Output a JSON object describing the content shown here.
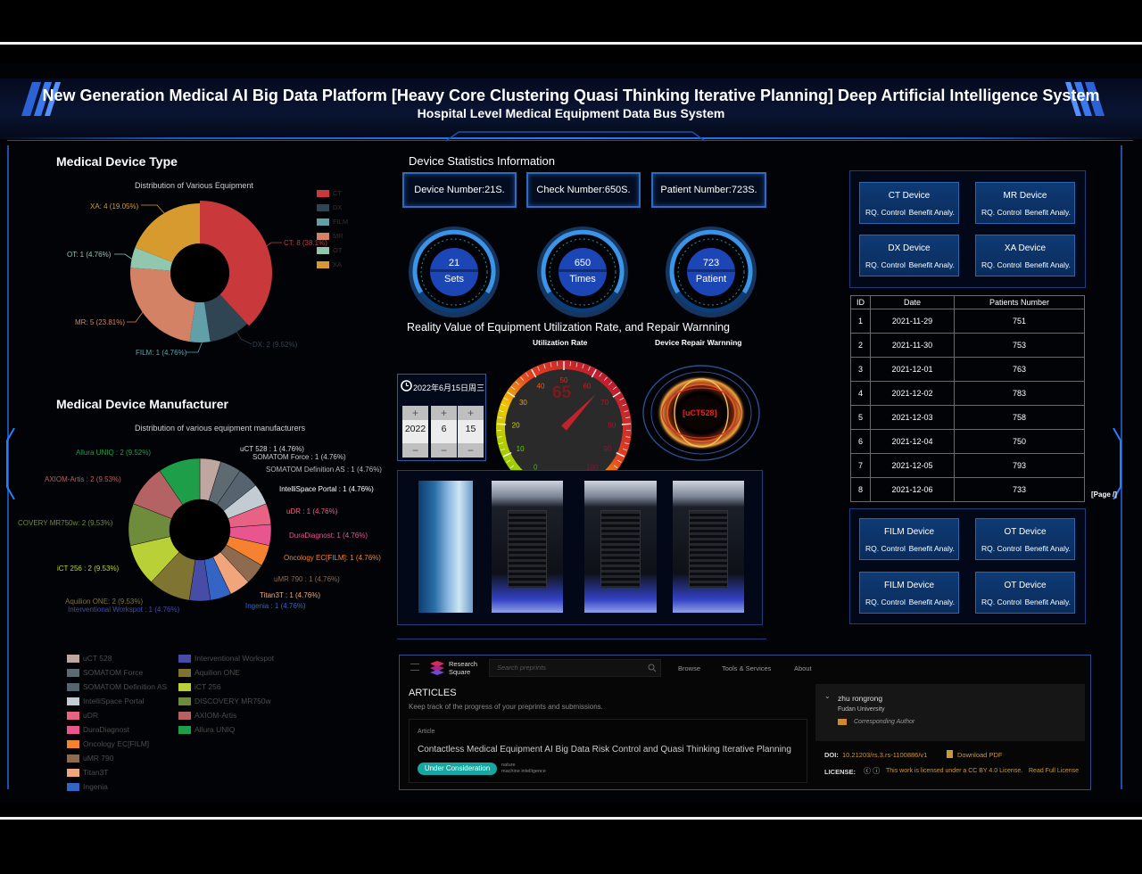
{
  "header": {
    "title": "New Generation Medical AI Big Data Platform [Heavy Core Clustering Quasi Thinking Iterative Planning] Deep Artificial Intelligence System",
    "subtitle": "Hospital Level Medical Equipment Data Bus System"
  },
  "device_type": {
    "heading": "Medical Device Type",
    "caption": "Distribution of Various Equipment",
    "labels": {
      "ct": "CT: 8 (38.1%)",
      "dx": "DX: 2 (9.52%)",
      "film": "FILM: 1 (4.76%)",
      "mr": "MR: 5 (23.81%)",
      "ot": "OT: 1 (4.76%)",
      "xa": "XA: 4 (19.05%)"
    },
    "legend": [
      "CT",
      "DX",
      "FILM",
      "MR",
      "OT",
      "XA"
    ]
  },
  "manufacturer": {
    "heading": "Medical Device Manufacturer",
    "caption": "Distribution of various equipment manufacturers",
    "labels": {
      "uct528": "uCT 528 : 1 (4.76%)",
      "somforce": "SOMATOM Force : 1 (4.76%)",
      "somdef": "SOMATOM Definition AS : 1 (4.76%)",
      "intelli": "IntelliSpace Portal : 1 (4.76%)",
      "udr": "uDR : 1 (4.76%)",
      "dura": "DuraDiagnost: 1 (4.76%)",
      "onco": "Oncology EC[FILM]: 1 (4.76%)",
      "umr": "uMR 790 : 1 (4.76%)",
      "titan": "Titan3T : 1 (4.76%)",
      "ingenia": "Ingenia : 1 (4.76%)",
      "interv": "Interventional Workspot : 1 (4.76%)",
      "aquilion": "Aquilion ONE: 2 (9.53%)",
      "ict": "iCT 256 : 2 (9.53%)",
      "discovery": "COVERY MR750w: 2 (9.53%)",
      "axiom": "AXIOM-Artis : 2 (9.53%)",
      "allura": "Allura UNIQ : 2 (9.52%)"
    },
    "legend_left": [
      "uCT 528",
      "SOMATOM Force",
      "SOMATOM Definition AS",
      "IntelliSpace Portal",
      "uDR",
      "DuraDiagnost",
      "Oncology EC[FILM]",
      "uMR 790",
      "Titan3T",
      "Ingenia"
    ],
    "legend_right": [
      "Interventional Workspot",
      "Aquilion ONE",
      "iCT 256",
      "DISCOVERY MR750w",
      "AXIOM-Artis",
      "Allura UNIQ"
    ]
  },
  "stats": {
    "heading": "Device Statistics Information",
    "device_number": "Device Number:21S.",
    "check_number": "Check Number:650S.",
    "patient_number": "Patient Number:723S.",
    "gauges": [
      {
        "value": "21",
        "unit": "Sets"
      },
      {
        "value": "650",
        "unit": "Times"
      },
      {
        "value": "723",
        "unit": "Patient"
      }
    ]
  },
  "utilization": {
    "heading": "Reality Value of Equipment Utilization Rate, and Repair Warnning",
    "rate_caption": "Utilization Rate",
    "repair_caption": "Device Repair Warnning",
    "rate_value": "65",
    "ticks": [
      "0",
      "10",
      "20",
      "30",
      "40",
      "50",
      "60",
      "70",
      "80",
      "90",
      "100"
    ],
    "repair_device": "[uCT528]",
    "date_label": "2022年6月15日周三",
    "year": "2022",
    "month": "6",
    "day": "15"
  },
  "devices_top": [
    {
      "name": "CT Device",
      "a": "RQ. Control",
      "b": "Benefit Analy."
    },
    {
      "name": "MR Device",
      "a": "RQ. Control",
      "b": "Benefit Analy."
    },
    {
      "name": "DX Device",
      "a": "RQ. Control",
      "b": "Benefit Analy."
    },
    {
      "name": "XA Device",
      "a": "RQ. Control",
      "b": "Benefit Analy."
    }
  ],
  "devices_bottom": [
    {
      "name": "FILM Device",
      "a": "RQ. Control",
      "b": "Benefit Analy."
    },
    {
      "name": "OT Device",
      "a": "RQ. Control",
      "b": "Benefit Analy."
    },
    {
      "name": "FILM Device",
      "a": "RQ. Control",
      "b": "Benefit Analy."
    },
    {
      "name": "OT Device",
      "a": "RQ. Control",
      "b": "Benefit Analy."
    }
  ],
  "patients_table": {
    "headers": [
      "ID",
      "Date",
      "Patients Number"
    ],
    "rows": [
      [
        "1",
        "2021-11-29",
        "751"
      ],
      [
        "2",
        "2021-11-30",
        "753"
      ],
      [
        "3",
        "2021-12-01",
        "763"
      ],
      [
        "4",
        "2021-12-02",
        "783"
      ],
      [
        "5",
        "2021-12-03",
        "758"
      ],
      [
        "6",
        "2021-12-04",
        "750"
      ],
      [
        "7",
        "2021-12-05",
        "793"
      ],
      [
        "8",
        "2021-12-06",
        "733"
      ]
    ],
    "page_label": "[Page /]"
  },
  "research_square": {
    "logo_line1": "Research",
    "logo_line2": "Square",
    "search_placeholder": "Search preprints",
    "nav": [
      "Browse",
      "Tools & Services",
      "About"
    ],
    "articles_heading": "ARTICLES",
    "articles_sub": "Keep track of the progress of your preprints and submissions.",
    "article_tag": "Article",
    "article_title": "Contactless Medical Equipment AI Big Data Risk Control and Quasi Thinking Iterative Planning",
    "status_badge": "Under Consideration",
    "journal_line1": "nature",
    "journal_line2": "machine intelligence",
    "author_name": "zhu rongrong",
    "author_affil": "Fudan University",
    "author_role": "Corresponding Author",
    "doi_label": "DOI:",
    "doi_value": "10.21203/rs.3.rs-1100886/v1",
    "download": "Download PDF",
    "license_label": "LICENSE:",
    "license_text": "This work is licensed under a CC BY 4.0 License.",
    "license_link": "Read Full License"
  },
  "colors": {
    "ct": "#c9383a",
    "dx": "#2f4554",
    "film": "#61a0a8",
    "mr": "#d48265",
    "ot": "#91c7ae",
    "xa": "#d79a2e",
    "accent": "#2c6bbd"
  }
}
